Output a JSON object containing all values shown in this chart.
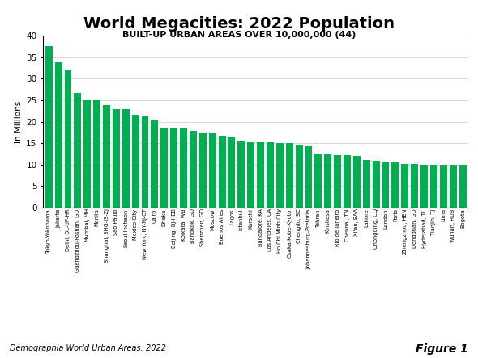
{
  "title": "World Megacities: 2022 Population",
  "subtitle": "BUILT-UP URBAN AREAS OVER 10,000,000 (44)",
  "ylabel": "In Millions",
  "source": "Demographia World Urban Areas: 2022",
  "figure_label": "Figure 1",
  "bar_color": "#00B050",
  "ylim": [
    0,
    40
  ],
  "yticks": [
    0,
    5,
    10,
    15,
    20,
    25,
    30,
    35,
    40
  ],
  "cities": [
    "Tokyo-Yokohama",
    "Jakarta",
    "Delhi, DL-UP-HR",
    "Guangzhou-Foshan, GD",
    "Mumbai, MH",
    "Manila",
    "Shanghai, SHG-JS-ZJ",
    "Sao Paulo",
    "Seoul-Incheon",
    "Mexico City",
    "New York, NY-NJ-CT",
    "Cairo",
    "Dhaka",
    "Beijing, BJ-HEB",
    "Kolkata, WB",
    "Bangkok, GD",
    "Shenzhen, GD",
    "Moscow",
    "Buenos Aires",
    "Lagos",
    "Istanbul",
    "Karachi",
    "Bangalore, KA",
    "Los Angeles, CA",
    "Ho Chi Minh City",
    "Osaka-Kobe-Kyoto",
    "Chengdu, SC",
    "Johannesburg-Pretoria",
    "Tehran",
    "Kinshasa",
    "Rio de Janeiro",
    "Chennai, TN",
    "Xi'an, SAA",
    "Lahore",
    "Chongqing, CQ",
    "London",
    "Paris",
    "Zhengzhou, HEN",
    "Dongguan, GD",
    "Hyderabad, TL",
    "Tianjin, TJ",
    "Lima",
    "Wuhan, HUB",
    "Bogota"
  ],
  "values": [
    37.7,
    33.8,
    32.0,
    26.7,
    25.0,
    25.0,
    23.9,
    23.0,
    23.0,
    21.7,
    21.5,
    20.3,
    18.6,
    18.6,
    18.4,
    17.9,
    17.5,
    17.4,
    16.7,
    16.3,
    15.6,
    15.2,
    15.2,
    15.2,
    15.1,
    15.0,
    14.4,
    14.2,
    12.6,
    12.4,
    12.2,
    12.2,
    12.0,
    11.1,
    10.9,
    10.7,
    10.5,
    10.2,
    10.1,
    10.0,
    10.0,
    10.0,
    10.0,
    10.0
  ]
}
